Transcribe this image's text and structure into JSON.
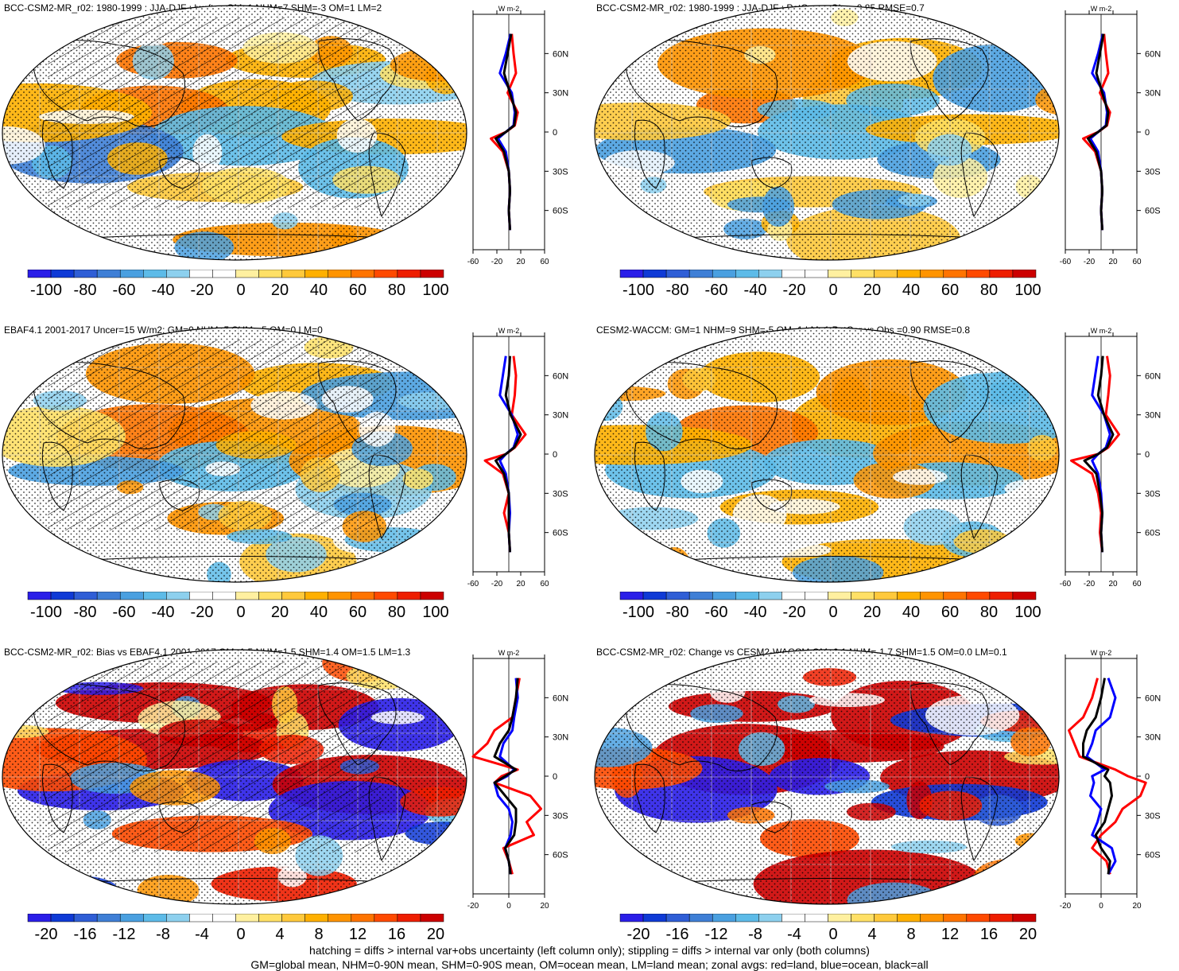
{
  "chart_data": [
    {
      "type": "map",
      "title": "BCC-CSM2-MR_r02: 1980-1999 : JJA-DJF : lwcftoa GM=1 NHM=7 SHM=-3 OM=1 LM=2",
      "colorbar_ticks": [
        "-100",
        "-80",
        "-60",
        "-40",
        "-20",
        "0",
        "20",
        "40",
        "60",
        "80",
        "100"
      ],
      "zonal_units": "W m-2",
      "zonal_xticks": [
        "-60",
        "-20",
        "20",
        "60"
      ],
      "zonal_ylabels": [
        "60N",
        "30N",
        "0",
        "30S",
        "60S"
      ],
      "hatching": true,
      "zonal_series": [
        {
          "color": "red",
          "lat": [
            75,
            60,
            45,
            30,
            15,
            5,
            0,
            -5,
            -15,
            -30,
            -45,
            -60,
            -75
          ],
          "values": [
            5,
            8,
            12,
            -2,
            15,
            10,
            -5,
            -30,
            -10,
            0,
            2,
            0,
            2
          ]
        },
        {
          "color": "blue",
          "lat": [
            75,
            60,
            45,
            30,
            15,
            5,
            0,
            -5,
            -15,
            -30,
            -45,
            -60,
            -75
          ],
          "values": [
            3,
            -5,
            -15,
            5,
            10,
            8,
            -5,
            -18,
            -5,
            0,
            2,
            0,
            2
          ]
        },
        {
          "color": "black",
          "lat": [
            75,
            60,
            45,
            30,
            15,
            5,
            0,
            -5,
            -15,
            -30,
            -45,
            -60,
            -75
          ],
          "values": [
            4,
            -2,
            -8,
            2,
            12,
            9,
            -5,
            -22,
            -8,
            0,
            2,
            0,
            2
          ]
        }
      ]
    },
    {
      "type": "map",
      "title": "BCC-CSM2-MR_r02: 1980-1999 : JJA-DJF : PatCor vs Obs =0.85 RMSE=0.7",
      "colorbar_ticks": [
        "-100",
        "-80",
        "-60",
        "-40",
        "-20",
        "0",
        "20",
        "40",
        "60",
        "80",
        "100"
      ],
      "zonal_units": "W m-2",
      "zonal_xticks": [
        "-60",
        "-20",
        "20",
        "60"
      ],
      "zonal_ylabels": [
        "60N",
        "30N",
        "0",
        "30S",
        "60S"
      ],
      "hatching": false,
      "zonal_series": [
        {
          "color": "red",
          "lat": [
            75,
            60,
            45,
            30,
            15,
            5,
            0,
            -5,
            -15,
            -30,
            -45,
            -60,
            -75
          ],
          "values": [
            5,
            8,
            12,
            -2,
            15,
            10,
            -5,
            -30,
            -10,
            0,
            2,
            0,
            2
          ]
        },
        {
          "color": "blue",
          "lat": [
            75,
            60,
            45,
            30,
            15,
            5,
            0,
            -5,
            -15,
            -30,
            -45,
            -60,
            -75
          ],
          "values": [
            3,
            -5,
            -15,
            5,
            10,
            8,
            -5,
            -18,
            -5,
            0,
            2,
            0,
            2
          ]
        },
        {
          "color": "black",
          "lat": [
            75,
            60,
            45,
            30,
            15,
            5,
            0,
            -5,
            -15,
            -30,
            -45,
            -60,
            -75
          ],
          "values": [
            4,
            -2,
            -8,
            2,
            12,
            9,
            -5,
            -22,
            -8,
            0,
            2,
            0,
            2
          ]
        }
      ]
    },
    {
      "type": "map",
      "title": "EBAF4.1 2001-2017 Uncer=15 W/m2: GM=0 NHM=5 SHM=-5 OM=0 LM=0",
      "colorbar_ticks": [
        "-100",
        "-80",
        "-60",
        "-40",
        "-20",
        "0",
        "20",
        "40",
        "60",
        "80",
        "100"
      ],
      "zonal_units": "W m-2",
      "zonal_xticks": [
        "-60",
        "-20",
        "20",
        "60"
      ],
      "zonal_ylabels": [
        "60N",
        "30N",
        "0",
        "30S",
        "60S"
      ],
      "hatching": true,
      "zonal_series": [
        {
          "color": "red",
          "lat": [
            75,
            60,
            45,
            30,
            15,
            5,
            0,
            -5,
            -15,
            -30,
            -45,
            -60,
            -75
          ],
          "values": [
            8,
            12,
            10,
            5,
            28,
            10,
            -5,
            -40,
            -10,
            0,
            -8,
            0,
            2
          ]
        },
        {
          "color": "blue",
          "lat": [
            75,
            60,
            45,
            30,
            15,
            5,
            0,
            -5,
            -15,
            -30,
            -45,
            -60,
            -75
          ],
          "values": [
            -5,
            -10,
            -15,
            5,
            15,
            8,
            -5,
            -15,
            -5,
            0,
            2,
            0,
            2
          ]
        },
        {
          "color": "black",
          "lat": [
            75,
            60,
            45,
            30,
            15,
            5,
            0,
            -5,
            -15,
            -30,
            -45,
            -60,
            -75
          ],
          "values": [
            2,
            0,
            -5,
            3,
            20,
            9,
            -5,
            -22,
            -8,
            0,
            0,
            0,
            2
          ]
        }
      ]
    },
    {
      "type": "map",
      "title": "CESM2-WACCM: GM=1 NHM=9 SHM=-5 OM=1 LM=1 PatCor vs Obs =0.90 RMSE=0.8",
      "colorbar_ticks": [
        "-100",
        "-80",
        "-60",
        "-40",
        "-20",
        "0",
        "20",
        "40",
        "60",
        "80",
        "100"
      ],
      "zonal_units": "W m-2",
      "zonal_xticks": [
        "-60",
        "-20",
        "20",
        "60"
      ],
      "zonal_ylabels": [
        "60N",
        "30N",
        "0",
        "30S",
        "60S"
      ],
      "hatching": false,
      "zonal_series": [
        {
          "color": "red",
          "lat": [
            75,
            60,
            45,
            30,
            15,
            5,
            0,
            -5,
            -15,
            -30,
            -45,
            -60,
            -75
          ],
          "values": [
            10,
            15,
            12,
            8,
            30,
            12,
            -5,
            -50,
            -15,
            -5,
            0,
            -2,
            2
          ]
        },
        {
          "color": "blue",
          "lat": [
            75,
            60,
            45,
            30,
            15,
            5,
            0,
            -5,
            -15,
            -30,
            -45,
            -60,
            -75
          ],
          "values": [
            -5,
            -10,
            -15,
            5,
            15,
            8,
            -5,
            -15,
            -5,
            0,
            2,
            0,
            2
          ]
        },
        {
          "color": "black",
          "lat": [
            75,
            60,
            45,
            30,
            15,
            5,
            0,
            -5,
            -15,
            -30,
            -45,
            -60,
            -75
          ],
          "values": [
            3,
            0,
            -5,
            5,
            20,
            10,
            -5,
            -28,
            -8,
            -2,
            2,
            0,
            2
          ]
        }
      ]
    },
    {
      "type": "map",
      "title": "BCC-CSM2-MR_r02: Bias vs EBAF4.1 2001-2017 GM=1.5 NHM=1.5 SHM=1.4 OM=1.5 LM=1.3",
      "colorbar_ticks": [
        "-20",
        "-16",
        "-12",
        "-8",
        "-4",
        "0",
        "4",
        "8",
        "12",
        "16",
        "20"
      ],
      "zonal_units": "W m-2",
      "zonal_xticks": [
        "-20",
        "0",
        "20"
      ],
      "zonal_ylabels": [
        "60N",
        "30N",
        "0",
        "30S",
        "60S"
      ],
      "hatching": true,
      "zonal_series": [
        {
          "color": "red",
          "lat": [
            75,
            60,
            45,
            35,
            25,
            15,
            5,
            0,
            -5,
            -15,
            -25,
            -35,
            -45,
            -55,
            -65,
            -75
          ],
          "values": [
            6,
            4,
            2,
            -8,
            -12,
            -20,
            5,
            -4,
            -8,
            12,
            18,
            10,
            14,
            -3,
            0,
            2
          ]
        },
        {
          "color": "blue",
          "lat": [
            75,
            60,
            45,
            35,
            25,
            15,
            5,
            0,
            -5,
            -15,
            -25,
            -35,
            -45,
            -55,
            -65,
            -75
          ],
          "values": [
            4,
            5,
            3,
            2,
            -3,
            -5,
            3,
            -1,
            -8,
            -6,
            0,
            2,
            1,
            -2,
            0,
            1
          ]
        },
        {
          "color": "black",
          "lat": [
            75,
            60,
            45,
            35,
            25,
            15,
            5,
            0,
            -5,
            -15,
            -25,
            -35,
            -45,
            -55,
            -65,
            -75
          ],
          "values": [
            5,
            4,
            2,
            0,
            -5,
            -8,
            4,
            -2,
            -8,
            -2,
            4,
            4,
            3,
            -2,
            0,
            1
          ]
        }
      ]
    },
    {
      "type": "map",
      "title": "BCC-CSM2-MR_r02: Change vs CESM2-WACCM GM=0.1 NHM=-1.7 SHM=1.5 OM=0.0 LM=0.1",
      "colorbar_ticks": [
        "-20",
        "-16",
        "-12",
        "-8",
        "-4",
        "0",
        "4",
        "8",
        "12",
        "16",
        "20"
      ],
      "zonal_units": "W m-2",
      "zonal_xticks": [
        "-20",
        "0",
        "20"
      ],
      "zonal_ylabels": [
        "60N",
        "30N",
        "0",
        "30S",
        "60S"
      ],
      "hatching": false,
      "zonal_series": [
        {
          "color": "red",
          "lat": [
            75,
            60,
            45,
            35,
            25,
            15,
            5,
            0,
            -5,
            -15,
            -25,
            -35,
            -45,
            -55,
            -65,
            -75
          ],
          "values": [
            -2,
            -5,
            -10,
            -18,
            -15,
            -12,
            8,
            15,
            25,
            22,
            12,
            8,
            0,
            -5,
            3,
            5
          ]
        },
        {
          "color": "blue",
          "lat": [
            75,
            60,
            45,
            35,
            25,
            15,
            5,
            0,
            -5,
            -15,
            -25,
            -35,
            -45,
            -55,
            -65,
            -75
          ],
          "values": [
            4,
            8,
            5,
            -3,
            -5,
            -8,
            2,
            -5,
            -4,
            -6,
            0,
            -2,
            -5,
            6,
            8,
            4
          ]
        },
        {
          "color": "black",
          "lat": [
            75,
            60,
            45,
            35,
            25,
            15,
            5,
            0,
            -5,
            -15,
            -25,
            -35,
            -45,
            -55,
            -65,
            -75
          ],
          "values": [
            2,
            0,
            -3,
            -8,
            -10,
            -10,
            4,
            2,
            5,
            6,
            4,
            2,
            -3,
            0,
            5,
            4
          ]
        }
      ]
    }
  ],
  "footer": {
    "line1": "hatching = diffs > internal var+obs uncertainty (left column only); stippling = diffs > internal var only (both columns)",
    "line2": "GM=global mean, NHM=0-90N mean, SHM=0-90S mean, OM=ocean mean, LM=land mean; zonal avgs: red=land, blue=ocean, black=all"
  },
  "colors": {
    "colorbar": [
      "#2a1ee8",
      "#0f3ad6",
      "#2f5ed6",
      "#3f7fd6",
      "#4aa0e0",
      "#5dbbe8",
      "#8dd0ee",
      "#ffffff",
      "#ffffff",
      "#fff0a0",
      "#ffe066",
      "#ffc93c",
      "#ffb000",
      "#ff9400",
      "#ff7400",
      "#ff4a00",
      "#ee1e00",
      "#cc0000"
    ],
    "land_zonal": "#ff0000",
    "ocean_zonal": "#0000ff",
    "all_zonal": "#000000"
  }
}
